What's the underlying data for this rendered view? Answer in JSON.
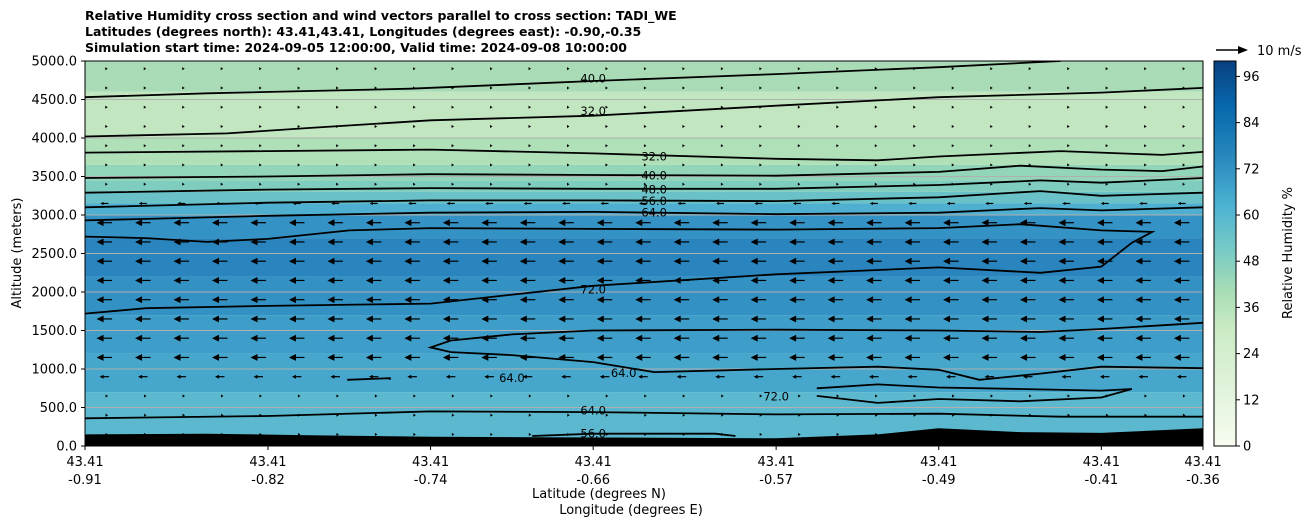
{
  "chart_data": {
    "type": "contour",
    "title_lines": [
      "Relative Humidity cross section and wind vectors parallel to cross section: TADI_WE",
      "Latitudes (degrees north): 43.41,43.41, Longitudes (degrees east): -0.90,-0.35",
      "Simulation start time: 2024-09-05 12:00:00, Valid time: 2024-09-08 10:00:00"
    ],
    "ylabel": "Altitude (meters)",
    "xlabel_lines": [
      "Latitude (degrees N)",
      "Longitude (degrees E)"
    ],
    "ylim": [
      0,
      5000
    ],
    "y_ticks": [
      "0.0",
      "500.0",
      "1000.0",
      "1500.0",
      "2000.0",
      "2500.0",
      "3000.0",
      "3500.0",
      "4000.0",
      "4500.0",
      "5000.0"
    ],
    "x_ticks": [
      {
        "lat": "43.41",
        "lon": "-0.91"
      },
      {
        "lat": "43.41",
        "lon": "-0.82"
      },
      {
        "lat": "43.41",
        "lon": "-0.74"
      },
      {
        "lat": "43.41",
        "lon": "-0.66"
      },
      {
        "lat": "43.41",
        "lon": "-0.57"
      },
      {
        "lat": "43.41",
        "lon": "-0.49"
      },
      {
        "lat": "43.41",
        "lon": "-0.41"
      },
      {
        "lat": "43.41",
        "lon": "-0.36"
      }
    ],
    "grid": {
      "horizontal": true
    },
    "colorbar": {
      "label": "Relative Humidity %",
      "range": [
        0,
        100
      ],
      "ticks": [
        "0",
        "12",
        "24",
        "36",
        "48",
        "60",
        "72",
        "84",
        "96"
      ]
    },
    "wind_key": {
      "label": "10 m/s"
    },
    "contour_labels": [
      {
        "text": "40.0",
        "x": -0.66,
        "y": 4770
      },
      {
        "text": "32.0",
        "x": -0.66,
        "y": 4350
      },
      {
        "text": "32.0",
        "x": -0.63,
        "y": 3760
      },
      {
        "text": "40.0",
        "x": -0.63,
        "y": 3510
      },
      {
        "text": "48.0",
        "x": -0.63,
        "y": 3330
      },
      {
        "text": "56.0",
        "x": -0.63,
        "y": 3180
      },
      {
        "text": "64.0",
        "x": -0.63,
        "y": 3030
      },
      {
        "text": "72.0",
        "x": -0.66,
        "y": 2030
      },
      {
        "text": "64.0",
        "x": -0.645,
        "y": 950
      },
      {
        "text": "64.0",
        "x": -0.7,
        "y": 880
      },
      {
        "text": "72.0",
        "x": -0.57,
        "y": 640
      },
      {
        "text": "64.0",
        "x": -0.66,
        "y": 460
      },
      {
        "text": "56.0",
        "x": -0.66,
        "y": 160
      }
    ]
  },
  "colors": {
    "terrain": "#000000",
    "colormap": [
      "#f7fcf0",
      "#e0f3db",
      "#ccebc5",
      "#a8ddb5",
      "#7bccc4",
      "#4eb3d3",
      "#2b8cbe",
      "#0868ac",
      "#084081"
    ]
  },
  "icons": {
    "wind_key": "arrow-right-icon"
  }
}
